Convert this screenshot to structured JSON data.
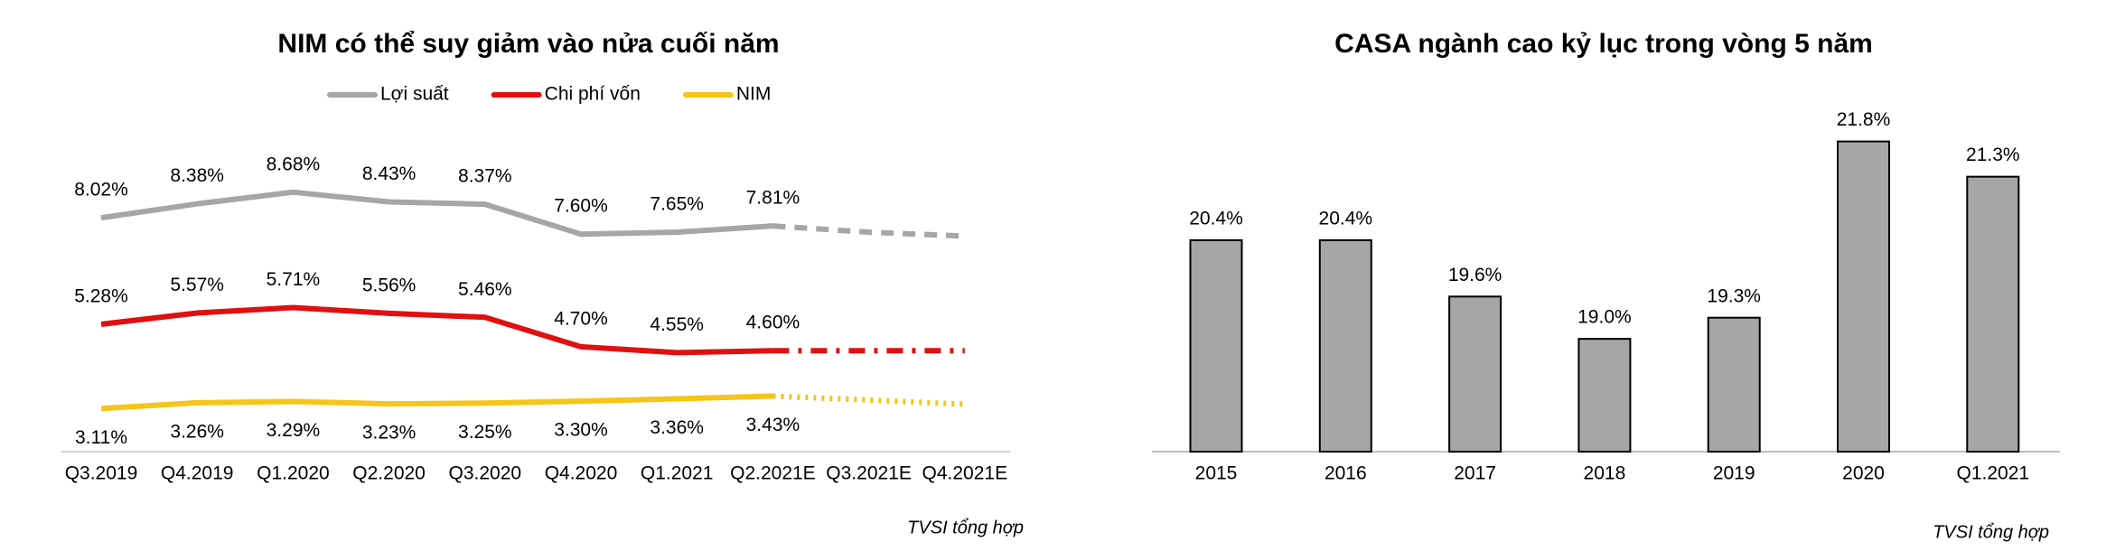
{
  "chart_data": [
    {
      "type": "line",
      "title": "NIM có thể suy giảm vào nửa cuối năm",
      "categories": [
        "Q3.2019",
        "Q4.2019",
        "Q1.2020",
        "Q2.2020",
        "Q3.2020",
        "Q4.2020",
        "Q1.2021",
        "Q2.2021E",
        "Q3.2021E",
        "Q4.2021E"
      ],
      "projected_start": "Q2.2021E",
      "series": [
        {
          "name": "Lợi suất",
          "color": "#a6a6a6",
          "dash": "dash",
          "label_position": "above",
          "values": [
            8.02,
            8.38,
            8.68,
            8.43,
            8.37,
            7.6,
            7.65,
            7.81,
            7.65,
            7.55
          ],
          "value_labels": [
            "8.02%",
            "8.38%",
            "8.68%",
            "8.43%",
            "8.37%",
            "7.60%",
            "7.65%",
            "7.81%",
            null,
            null
          ]
        },
        {
          "name": "Chi phí vốn",
          "color": "#e01010",
          "dash": "dashdot",
          "label_position": "above",
          "values": [
            5.28,
            5.57,
            5.71,
            5.56,
            5.46,
            4.7,
            4.55,
            4.6,
            4.6,
            4.6
          ],
          "value_labels": [
            "5.28%",
            "5.57%",
            "5.71%",
            "5.56%",
            "5.46%",
            "4.70%",
            "4.55%",
            "4.60%",
            null,
            null
          ]
        },
        {
          "name": "NIM",
          "color": "#f5c518",
          "dash": "dot",
          "label_position": "below",
          "values": [
            3.11,
            3.26,
            3.29,
            3.23,
            3.25,
            3.3,
            3.36,
            3.43,
            3.33,
            3.22
          ],
          "value_labels": [
            "3.11%",
            "3.26%",
            "3.29%",
            "3.23%",
            "3.25%",
            "3.30%",
            "3.36%",
            "3.43%",
            null,
            null
          ]
        }
      ],
      "ylim": [
        2,
        10
      ],
      "legend": "top",
      "source": "TVSI tổng hợp"
    },
    {
      "type": "bar",
      "title": "CASA ngành cao kỷ lục trong vòng 5 năm",
      "categories": [
        "2015",
        "2016",
        "2017",
        "2018",
        "2019",
        "2020",
        "Q1.2021"
      ],
      "values": [
        20.4,
        20.4,
        19.6,
        19.0,
        19.3,
        21.8,
        21.3
      ],
      "value_labels": [
        "20.4%",
        "20.4%",
        "19.6%",
        "19.0%",
        "19.3%",
        "21.8%",
        "21.3%"
      ],
      "color": "#a6a6a6",
      "ylim": [
        17.4,
        22
      ],
      "source": "TVSI tổng hợp"
    }
  ]
}
